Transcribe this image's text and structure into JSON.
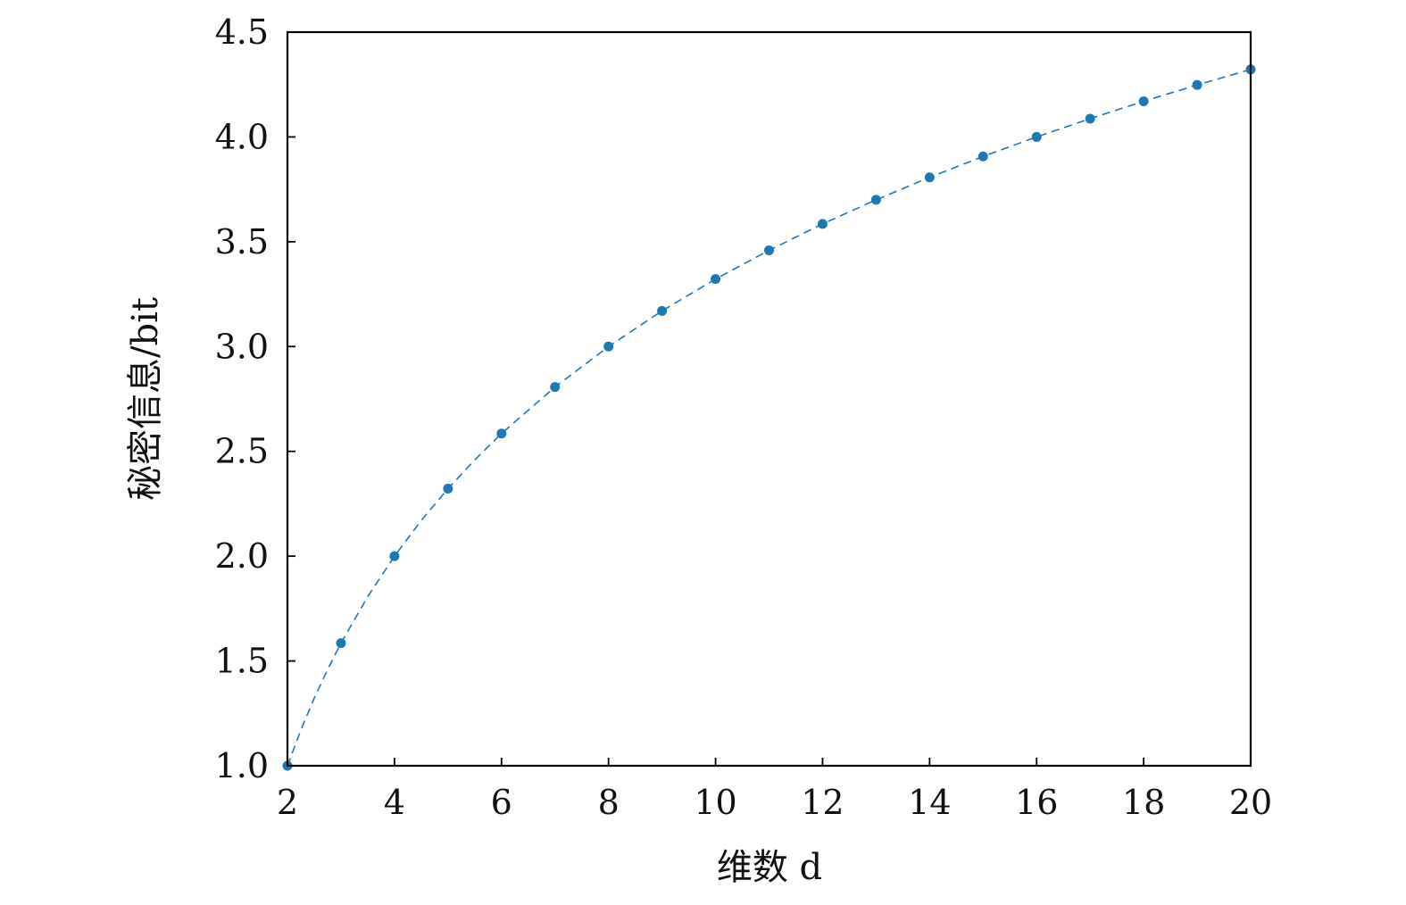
{
  "chart_data": {
    "type": "scatter",
    "title": "",
    "xlabel": "维数 d",
    "ylabel": "秘密信息/bit",
    "xlim": [
      2,
      20
    ],
    "ylim": [
      1.0,
      4.5
    ],
    "xticks": [
      2,
      4,
      6,
      8,
      10,
      12,
      14,
      16,
      18,
      20
    ],
    "xtick_labels": [
      "2",
      "4",
      "6",
      "8",
      "10",
      "12",
      "14",
      "16",
      "18",
      "20"
    ],
    "yticks": [
      1.0,
      1.5,
      2.0,
      2.5,
      3.0,
      3.5,
      4.0,
      4.5
    ],
    "ytick_labels": [
      "1.0",
      "1.5",
      "2.0",
      "2.5",
      "3.0",
      "3.5",
      "4.0",
      "4.5"
    ],
    "grid": false,
    "series": [
      {
        "style": "markers with dashed curve",
        "color": "#1f77b4",
        "x": [
          2,
          3,
          4,
          5,
          6,
          7,
          8,
          9,
          10,
          11,
          12,
          13,
          14,
          15,
          16,
          17,
          18,
          19,
          20
        ],
        "y": [
          1.0,
          1.585,
          2.0,
          2.322,
          2.585,
          2.807,
          3.0,
          3.17,
          3.322,
          3.459,
          3.585,
          3.7,
          3.807,
          3.907,
          4.0,
          4.087,
          4.17,
          4.248,
          4.322
        ]
      }
    ],
    "curve": {
      "style": "dashed",
      "color": "#1f77b4",
      "x_samples": [
        2,
        2.25,
        2.5,
        2.75,
        3,
        3.5,
        4,
        4.5,
        5,
        5.5,
        6,
        7,
        8,
        9,
        10,
        11,
        12,
        13,
        14,
        15,
        16,
        17,
        18,
        19,
        20
      ],
      "y_samples": [
        1.0,
        1.17,
        1.322,
        1.459,
        1.585,
        1.807,
        2.0,
        2.17,
        2.322,
        2.459,
        2.585,
        2.807,
        3.0,
        3.17,
        3.322,
        3.459,
        3.585,
        3.7,
        3.807,
        3.907,
        4.0,
        4.087,
        4.17,
        4.248,
        4.322
      ]
    }
  }
}
